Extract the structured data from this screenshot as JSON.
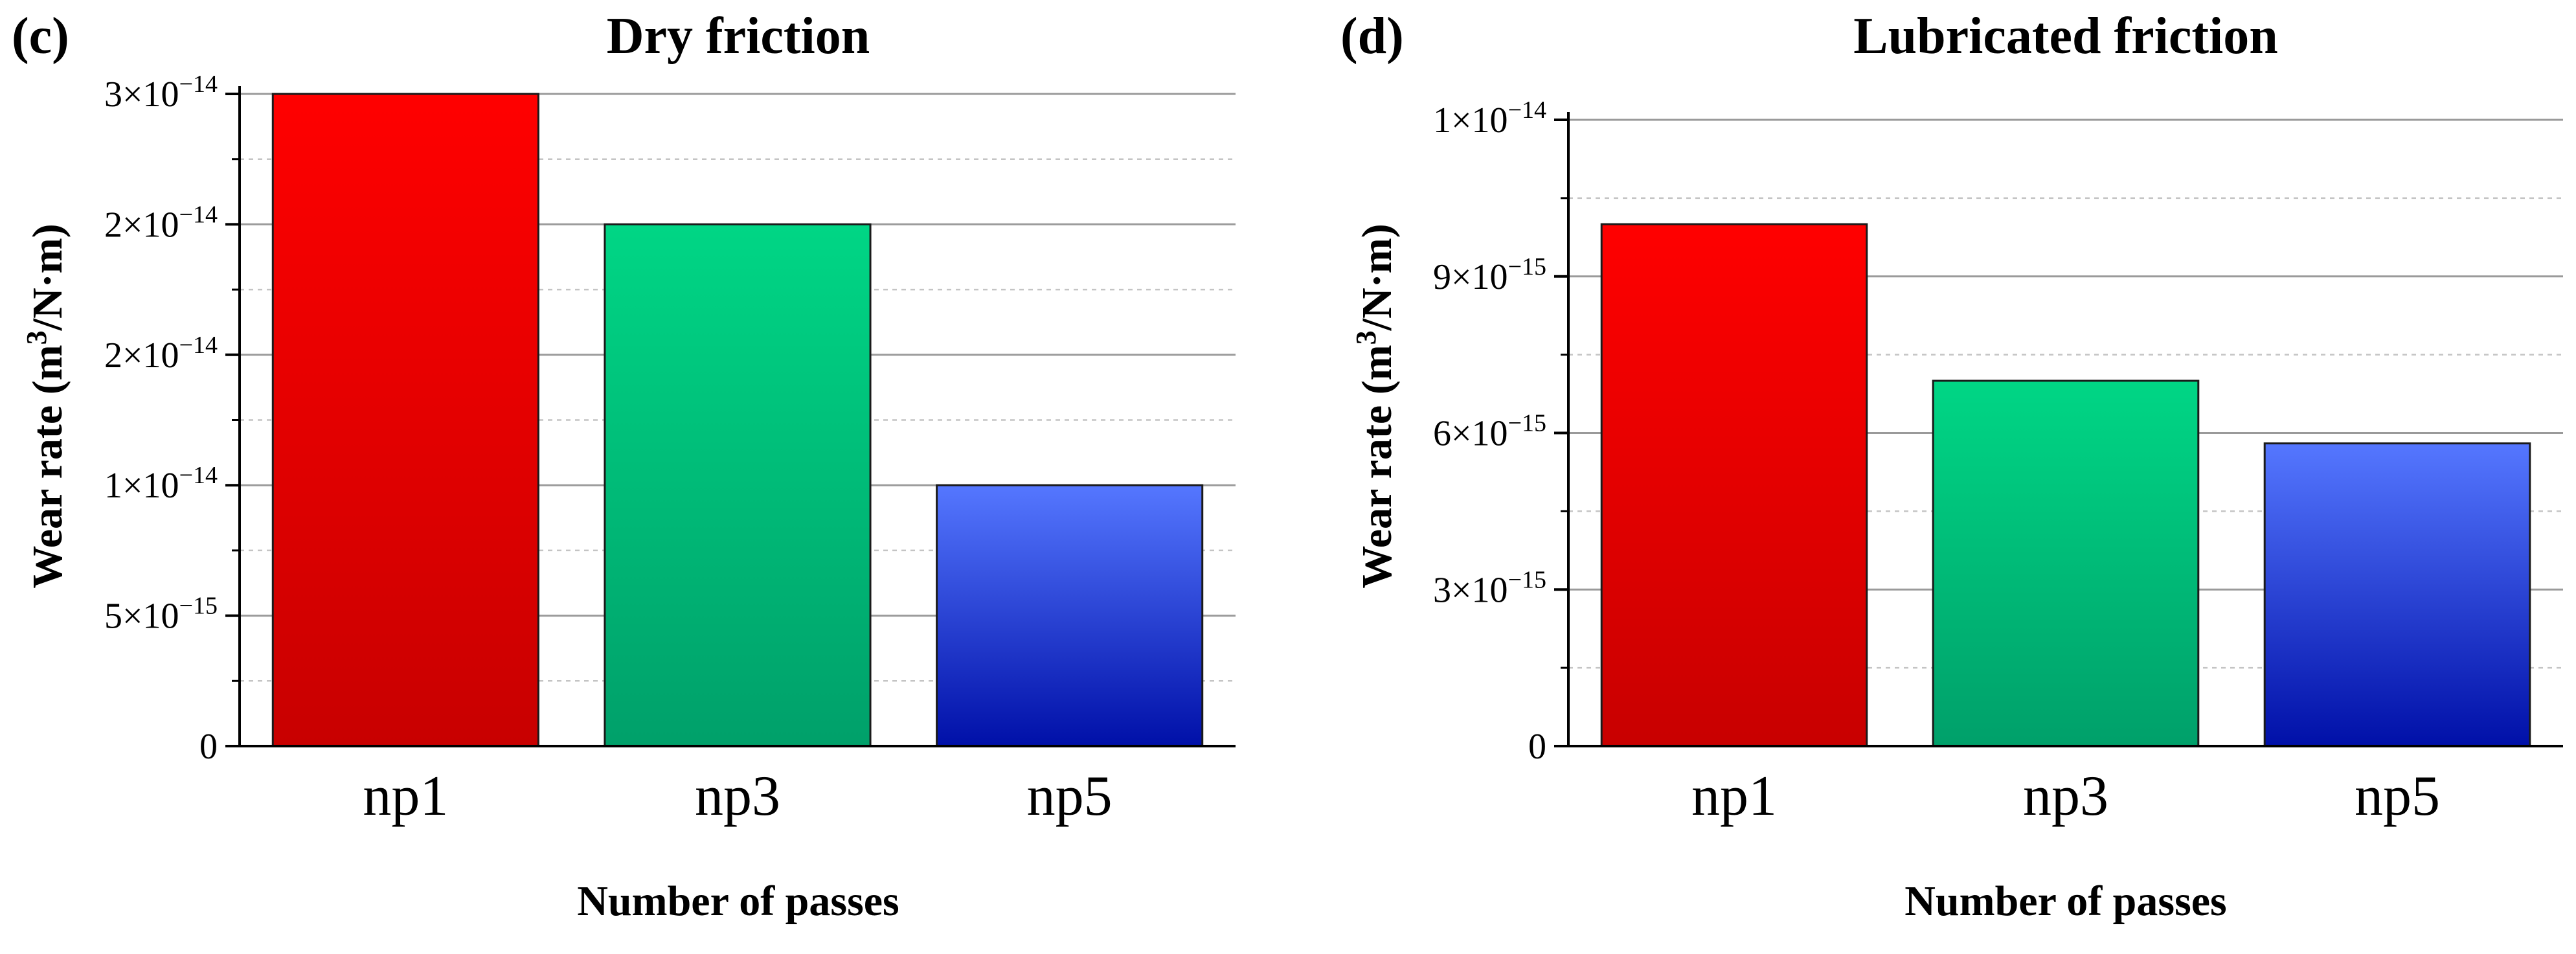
{
  "chart_data": [
    {
      "type": "bar",
      "panel_label": "(c)",
      "title": "Dry friction",
      "xlabel": "Number of passes",
      "ylabel": {
        "pre": "Wear rate (m",
        "sup": "3",
        "post": "/N·m)"
      },
      "categories": [
        "np1",
        "np3",
        "np5"
      ],
      "values": [
        2.5e-14,
        2e-14,
        1e-14
      ],
      "ylim": [
        0,
        2.5e-14
      ],
      "ticks": [
        {
          "value": 0,
          "mantissa": "0",
          "exp": ""
        },
        {
          "value": 5e-15,
          "mantissa": "5×10",
          "exp": "−15"
        },
        {
          "value": 1e-14,
          "mantissa": "1×10",
          "exp": "−14"
        },
        {
          "value": 1.5e-14,
          "mantissa": "2×10",
          "exp": "−14"
        },
        {
          "value": 2e-14,
          "mantissa": "2×10",
          "exp": "−14"
        },
        {
          "value": 2.5e-14,
          "mantissa": "3×10",
          "exp": "−14"
        }
      ],
      "minor_grid": true,
      "colors": [
        {
          "top": "#ff0000",
          "bottom": "#c80000"
        },
        {
          "top": "#00d685",
          "bottom": "#00a06a"
        },
        {
          "top": "#5577ff",
          "bottom": "#0010a8"
        }
      ]
    },
    {
      "type": "bar",
      "panel_label": "(d)",
      "title": "Lubricated friction",
      "xlabel": "Number of passes",
      "ylabel": {
        "pre": "Wear rate (m",
        "sup": "3",
        "post": "/N·m)"
      },
      "categories": [
        "np1",
        "np3",
        "np5"
      ],
      "values": [
        1e-14,
        7e-15,
        5.8e-15
      ],
      "ylim": [
        0,
        1.2e-14
      ],
      "ticks": [
        {
          "value": 0,
          "mantissa": "0",
          "exp": ""
        },
        {
          "value": 3e-15,
          "mantissa": "3×10",
          "exp": "−15"
        },
        {
          "value": 6e-15,
          "mantissa": "6×10",
          "exp": "−15"
        },
        {
          "value": 9e-15,
          "mantissa": "9×10",
          "exp": "−15"
        },
        {
          "value": 1.2e-14,
          "mantissa": "1×10",
          "exp": "−14"
        }
      ],
      "minor_grid": true,
      "colors": [
        {
          "top": "#ff0000",
          "bottom": "#c80000"
        },
        {
          "top": "#00d685",
          "bottom": "#00a06a"
        },
        {
          "top": "#5577ff",
          "bottom": "#0010a8"
        }
      ]
    }
  ]
}
